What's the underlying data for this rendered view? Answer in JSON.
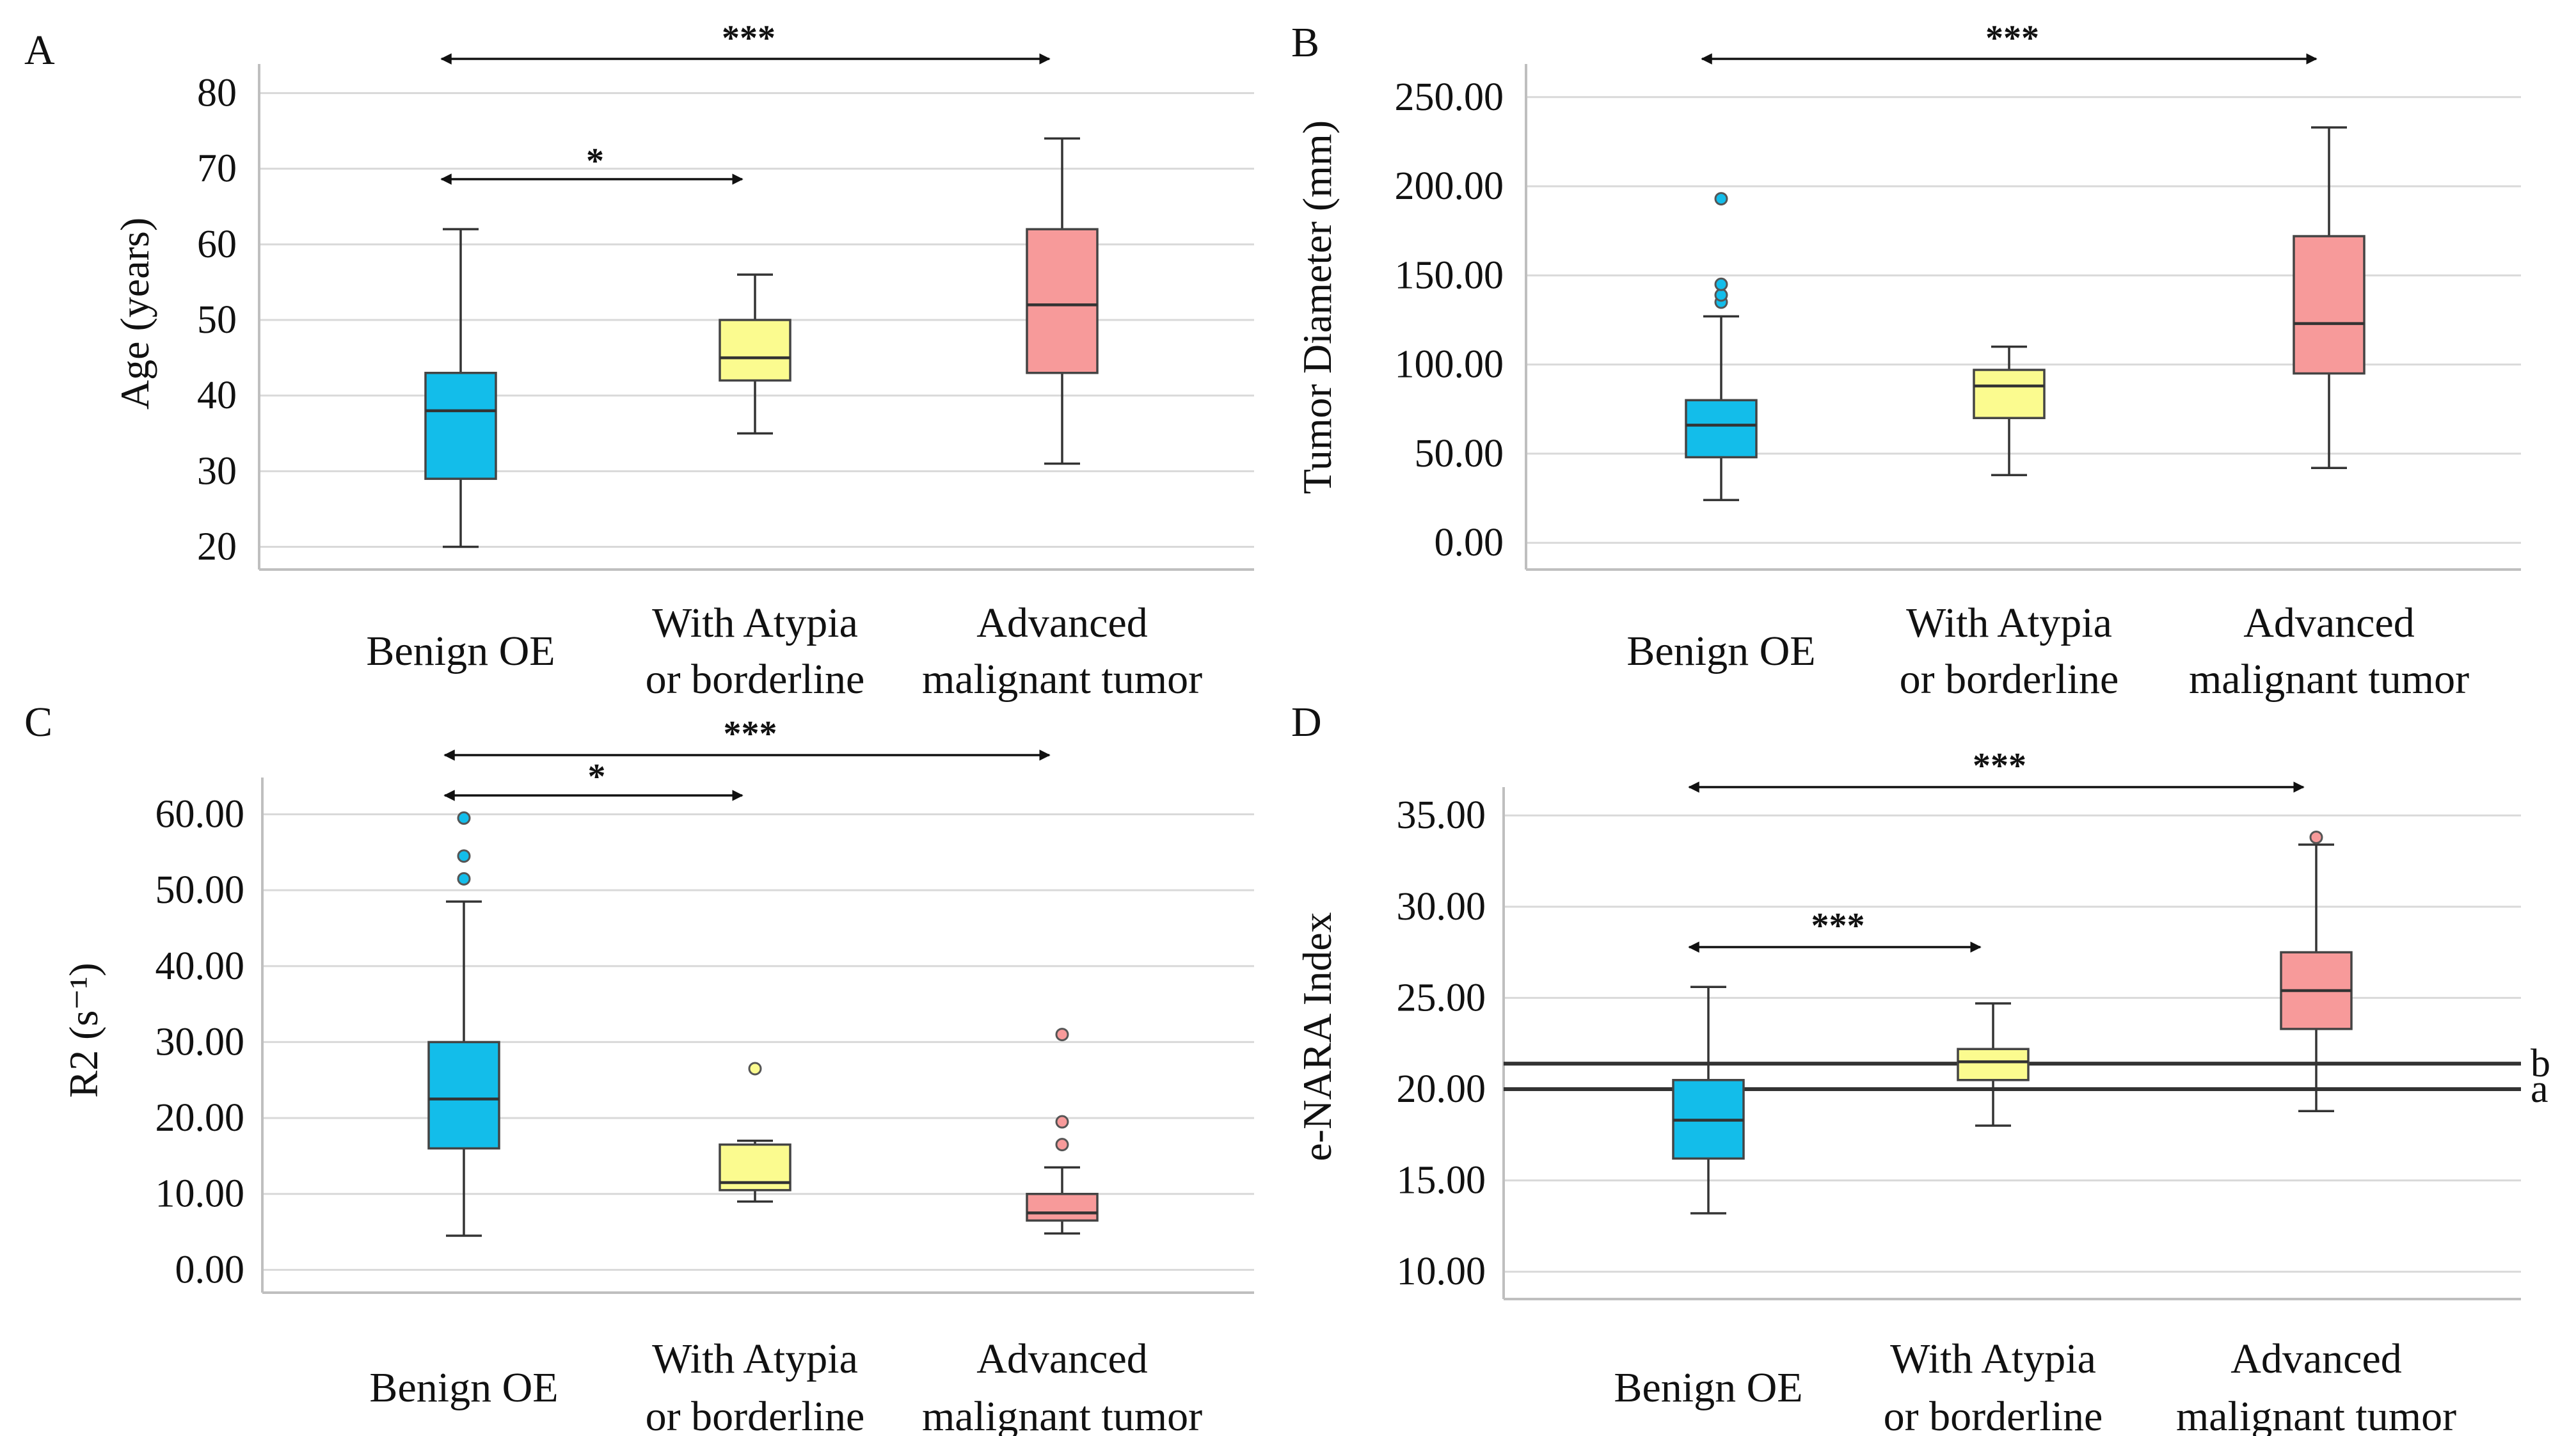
{
  "chart_data": [
    {
      "panel": "A",
      "type": "box",
      "ylabel": "Age (years)",
      "yticks": [
        "20",
        "30",
        "40",
        "50",
        "60",
        "70",
        "80"
      ],
      "ylim": [
        17,
        83
      ],
      "categories": [
        {
          "line1": "Benign OE",
          "line2": ""
        },
        {
          "line1": "With Atypia",
          "line2": "or borderline"
        },
        {
          "line1": "Advanced",
          "line2": "malignant tumor"
        }
      ],
      "boxes": [
        {
          "whisker_low": 20,
          "q1": 29,
          "median": 38,
          "q3": 43,
          "whisker_high": 62,
          "outliers": [],
          "color": "#13bdea"
        },
        {
          "whisker_low": 35,
          "q1": 42,
          "median": 45,
          "q3": 50,
          "whisker_high": 56,
          "outliers": [],
          "color": "#fbfb8f"
        },
        {
          "whisker_low": 31,
          "q1": 43,
          "median": 52,
          "q3": 62,
          "whisker_high": 74,
          "outliers": [],
          "color": "#f79a9a"
        }
      ],
      "significance": [
        {
          "from": 0,
          "to": 2,
          "label": "***"
        },
        {
          "from": 0,
          "to": 1,
          "label": "*"
        }
      ],
      "reference_lines": []
    },
    {
      "panel": "B",
      "type": "box",
      "ylabel": "Tumor Diameter (mm)",
      "yticks": [
        "0.00",
        "50.00",
        "100.00",
        "150.00",
        "200.00",
        "250.00"
      ],
      "ylim": [
        -15,
        265
      ],
      "categories": [
        {
          "line1": "Benign OE",
          "line2": ""
        },
        {
          "line1": "With Atypia",
          "line2": "or borderline"
        },
        {
          "line1": "Advanced",
          "line2": "malignant tumor"
        }
      ],
      "boxes": [
        {
          "whisker_low": 24,
          "q1": 48,
          "median": 66,
          "q3": 80,
          "whisker_high": 127,
          "outliers": [
            135,
            139,
            145,
            193
          ],
          "color": "#13bdea"
        },
        {
          "whisker_low": 38,
          "q1": 70,
          "median": 88,
          "q3": 97,
          "whisker_high": 110,
          "outliers": [],
          "color": "#fbfb8f"
        },
        {
          "whisker_low": 42,
          "q1": 95,
          "median": 123,
          "q3": 172,
          "whisker_high": 233,
          "outliers": [],
          "color": "#f79a9a"
        }
      ],
      "significance": [
        {
          "from": 0,
          "to": 2,
          "label": "***"
        }
      ],
      "reference_lines": []
    },
    {
      "panel": "C",
      "type": "box",
      "ylabel": "R2 (s⁻¹)",
      "yticks": [
        "0.00",
        "10.00",
        "20.00",
        "30.00",
        "40.00",
        "50.00",
        "60.00"
      ],
      "ylim": [
        -3,
        64
      ],
      "categories": [
        {
          "line1": "Benign OE",
          "line2": ""
        },
        {
          "line1": "With Atypia",
          "line2": "or borderline"
        },
        {
          "line1": "Advanced",
          "line2": "malignant tumor"
        }
      ],
      "boxes": [
        {
          "whisker_low": 4.5,
          "q1": 16,
          "median": 22.5,
          "q3": 30,
          "whisker_high": 48.5,
          "outliers": [
            51.5,
            54.5,
            59.5
          ],
          "color": "#13bdea"
        },
        {
          "whisker_low": 9,
          "q1": 10.5,
          "median": 11.5,
          "q3": 16.5,
          "whisker_high": 17,
          "outliers": [
            26.5
          ],
          "color": "#fbfb8f"
        },
        {
          "whisker_low": 4.8,
          "q1": 6.5,
          "median": 7.5,
          "q3": 10,
          "whisker_high": 13.5,
          "outliers": [
            16.5,
            19.5,
            31
          ],
          "color": "#f79a9a"
        }
      ],
      "significance": [
        {
          "from": 0,
          "to": 2,
          "label": "***"
        },
        {
          "from": 0,
          "to": 1,
          "label": "*"
        }
      ],
      "reference_lines": []
    },
    {
      "panel": "D",
      "type": "box",
      "ylabel": "e-NARA Index",
      "yticks": [
        "10.00",
        "15.00",
        "20.00",
        "25.00",
        "30.00",
        "35.00"
      ],
      "ylim": [
        8.5,
        36.2
      ],
      "categories": [
        {
          "line1": "Benign OE",
          "line2": ""
        },
        {
          "line1": "With Atypia",
          "line2": "or borderline"
        },
        {
          "line1": "Advanced",
          "line2": "malignant tumor"
        }
      ],
      "boxes": [
        {
          "whisker_low": 13.2,
          "q1": 16.2,
          "median": 18.3,
          "q3": 20.5,
          "whisker_high": 25.6,
          "outliers": [],
          "color": "#13bdea"
        },
        {
          "whisker_low": 18,
          "q1": 20.5,
          "median": 21.5,
          "q3": 22.2,
          "whisker_high": 24.7,
          "outliers": [],
          "color": "#fbfb8f"
        },
        {
          "whisker_low": 18.8,
          "q1": 23.3,
          "median": 25.4,
          "q3": 27.5,
          "whisker_high": 33.4,
          "outliers": [
            33.8
          ],
          "color": "#f79a9a"
        }
      ],
      "significance": [
        {
          "from": 0,
          "to": 2,
          "label": "***"
        },
        {
          "from": 0,
          "to": 1,
          "label": "***"
        }
      ],
      "reference_lines": [
        {
          "value": 21.4,
          "label": "b"
        },
        {
          "value": 20.0,
          "label": "a"
        }
      ]
    }
  ]
}
